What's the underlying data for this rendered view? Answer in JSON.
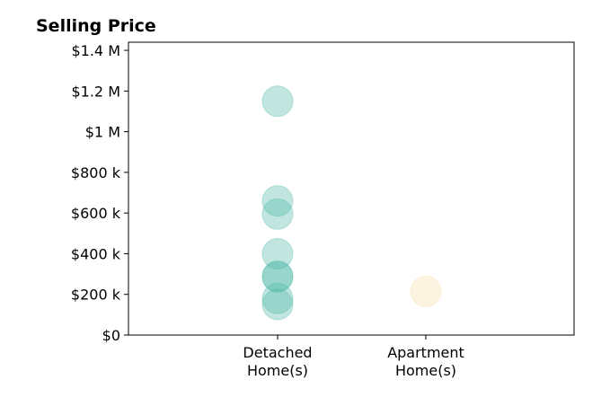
{
  "chart_data": {
    "type": "scatter",
    "title": "Selling Price",
    "xlabel": "",
    "ylabel": "",
    "categories": [
      "Detached\nHome(s)",
      "Apartment\nHome(s)"
    ],
    "ylim": [
      0,
      1440000
    ],
    "yticks": [
      {
        "value": 0,
        "label": "$0"
      },
      {
        "value": 200000,
        "label": "$200 k"
      },
      {
        "value": 400000,
        "label": "$400 k"
      },
      {
        "value": 600000,
        "label": "$600 k"
      },
      {
        "value": 800000,
        "label": "$800 k"
      },
      {
        "value": 1000000,
        "label": "$1 M"
      },
      {
        "value": 1200000,
        "label": "$1.2 M"
      },
      {
        "value": 1400000,
        "label": "$1.4 M"
      }
    ],
    "series": [
      {
        "category": "Detached\nHome(s)",
        "color": "#4db6a6",
        "values": [
          1150000,
          660000,
          595000,
          400000,
          290000,
          285000,
          180000,
          150000
        ]
      },
      {
        "category": "Apartment\nHome(s)",
        "color": "#f7dea6",
        "values": [
          215000
        ]
      }
    ],
    "grid": false,
    "legend": "none"
  }
}
